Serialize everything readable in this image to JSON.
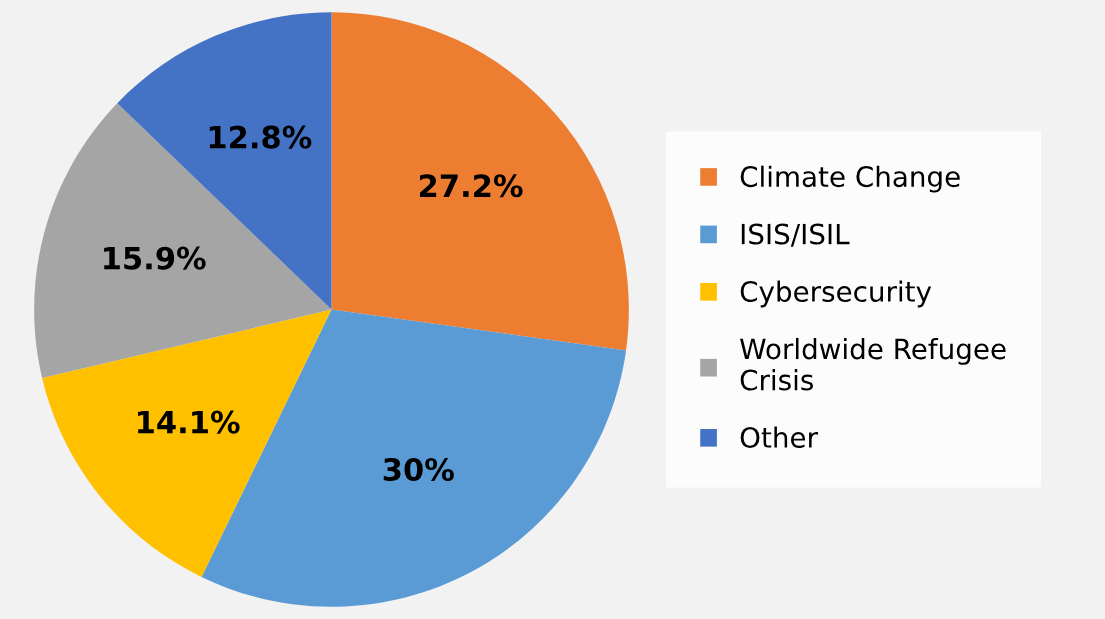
{
  "chart_data": {
    "type": "pie",
    "categories": [
      "Climate Change",
      "ISIS/ISIL",
      "Cybersecurity",
      "Worldwide Refugee\nCrisis",
      "Other"
    ],
    "values": [
      27.2,
      30,
      14.1,
      15.9,
      12.8
    ],
    "value_labels": [
      "27.2%",
      "30%",
      "14.1%",
      "15.9%",
      "12.8%"
    ],
    "colors": [
      "#ed7d31",
      "#5b9bd5",
      "#ffc000",
      "#a5a5a5",
      "#4472c4"
    ],
    "legend": "right"
  }
}
